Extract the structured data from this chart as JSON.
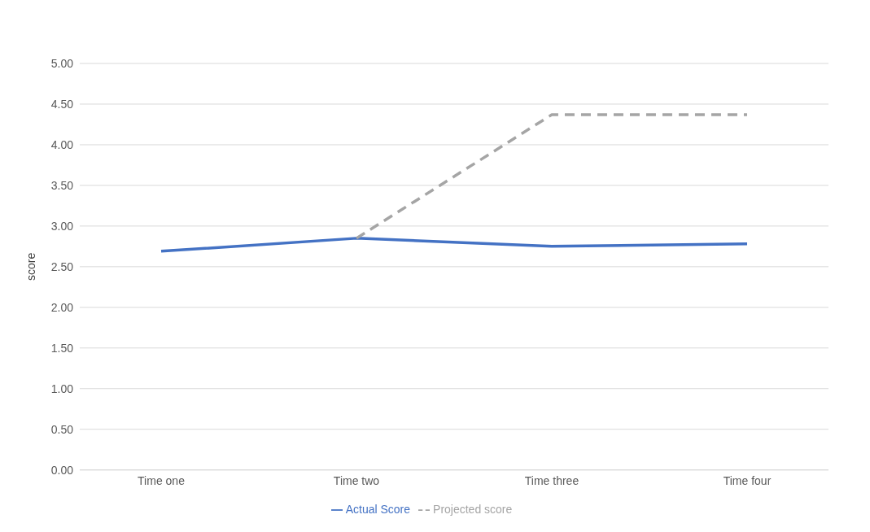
{
  "chart_data": {
    "type": "line",
    "ylabel": "score",
    "categories": [
      "Time one",
      "Time two",
      "Time three",
      "Time four"
    ],
    "series": [
      {
        "name": "Actual Score",
        "color": "#4472c4",
        "line_style": "solid",
        "values": [
          2.69,
          2.85,
          2.75,
          2.78
        ]
      },
      {
        "name": "Projected score",
        "color": "#a5a5a5",
        "line_style": "dashed",
        "values": [
          null,
          2.85,
          4.37,
          4.37
        ]
      }
    ],
    "ylim": [
      0,
      5
    ],
    "yticks": [
      {
        "value": 0,
        "label": "0.00"
      },
      {
        "value": 0.5,
        "label": "0.50"
      },
      {
        "value": 1,
        "label": "1.00"
      },
      {
        "value": 1.5,
        "label": "1.50"
      },
      {
        "value": 2,
        "label": "2.00"
      },
      {
        "value": 2.5,
        "label": "2.50"
      },
      {
        "value": 3,
        "label": "3.00"
      },
      {
        "value": 3.5,
        "label": "3.50"
      },
      {
        "value": 4,
        "label": "4.00"
      },
      {
        "value": 4.5,
        "label": "4.50"
      },
      {
        "value": 5,
        "label": "5.00"
      }
    ],
    "grid": "y",
    "legend": "bottom",
    "marker": "none"
  }
}
